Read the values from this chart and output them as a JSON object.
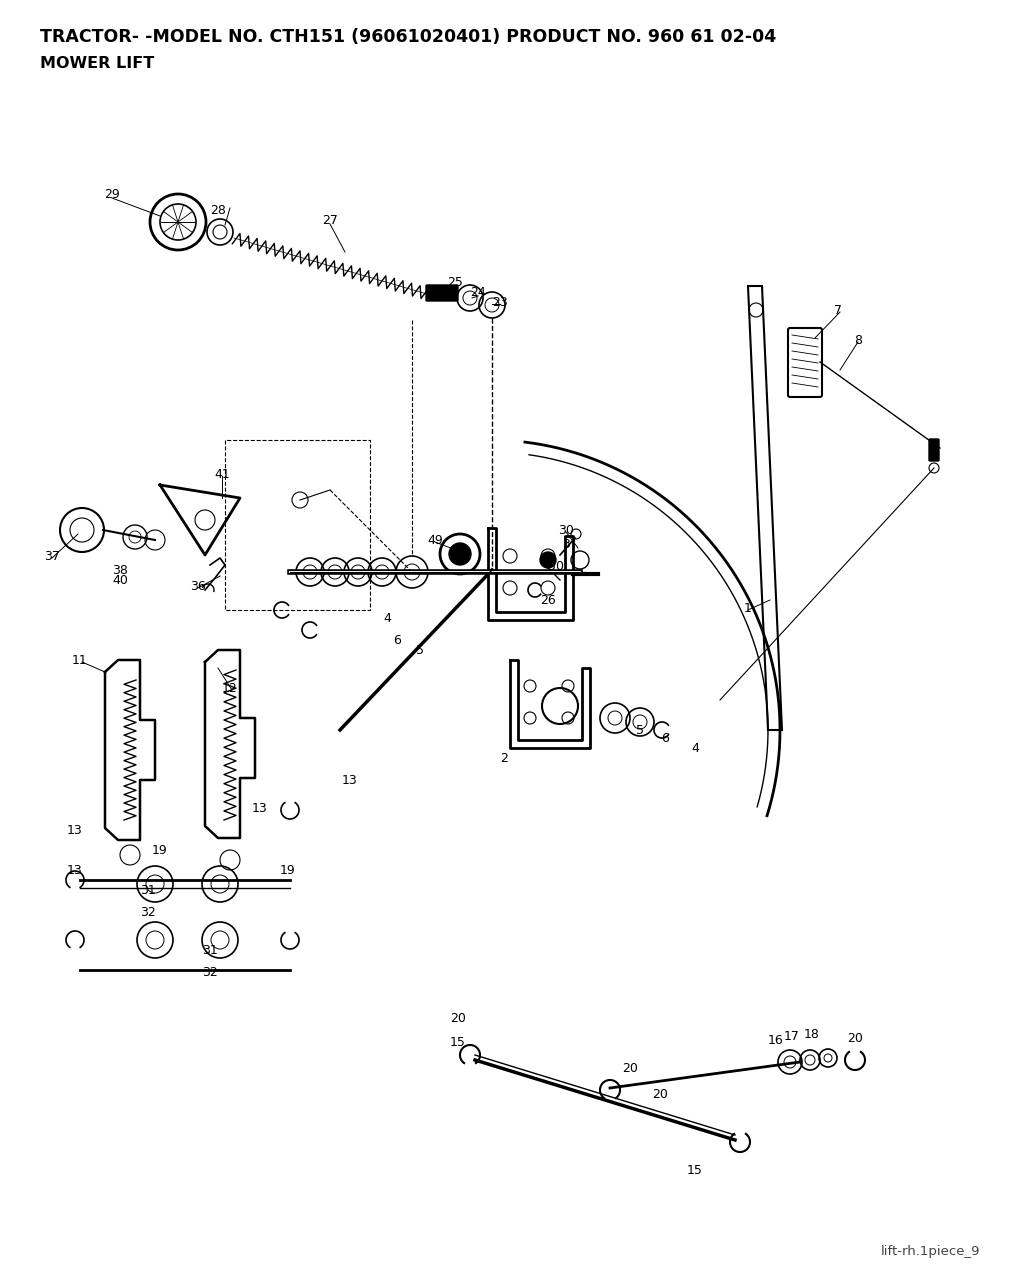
{
  "title_line1": "TRACTOR- -MODEL NO. CTH151 (96061020401) PRODUCT NO. 960 61 02-04",
  "title_line2": "MOWER LIFT",
  "footer": "lift-rh.1piece_9",
  "bg_color": "#ffffff",
  "title_fontsize": 12.5,
  "subtitle_fontsize": 11.5,
  "footer_fontsize": 9.5,
  "fig_w": 10.24,
  "fig_h": 12.83,
  "dpi": 100
}
